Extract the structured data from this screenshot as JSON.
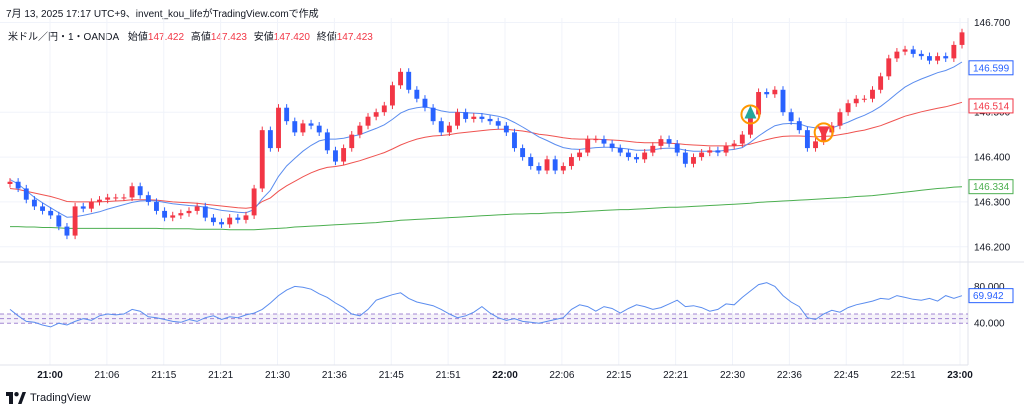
{
  "header": {
    "text": "7月 13, 2025 17:17 UTC+9、invent_kou_lifeがTradingView.comで作成"
  },
  "legend": {
    "symbol": "米ドル／円・1・OANDA",
    "open_label": "始値",
    "open_value": "147.422",
    "high_label": "高値",
    "high_value": "147.423",
    "low_label": "安値",
    "low_value": "147.420",
    "close_label": "終値",
    "close_value": "147.423"
  },
  "footer": {
    "brand": "TradingView"
  },
  "colors": {
    "up": "#f23645",
    "down": "#2962ff",
    "fast_ma": "#5b8def",
    "slow_ma": "#ef5350",
    "long_ma": "#4caf50",
    "rsi": "#5b8def",
    "rsi_band": "#7e57c2"
  },
  "chart_data": [
    {
      "type": "candlestick",
      "title": "",
      "ylim": [
        146.175,
        146.71
      ],
      "y_ticks": [
        "146.700",
        "146.500",
        "146.400",
        "146.300",
        "146.200"
      ],
      "x_ticks": [
        {
          "label": "21:00",
          "bold": true
        },
        {
          "label": "21:06",
          "bold": false
        },
        {
          "label": "21:15",
          "bold": false
        },
        {
          "label": "21:21",
          "bold": false
        },
        {
          "label": "21:30",
          "bold": false
        },
        {
          "label": "21:36",
          "bold": false
        },
        {
          "label": "21:45",
          "bold": false
        },
        {
          "label": "21:51",
          "bold": false
        },
        {
          "label": "22:00",
          "bold": true
        },
        {
          "label": "22:06",
          "bold": false
        },
        {
          "label": "22:15",
          "bold": false
        },
        {
          "label": "22:21",
          "bold": false
        },
        {
          "label": "22:30",
          "bold": false
        },
        {
          "label": "22:36",
          "bold": false
        },
        {
          "label": "22:45",
          "bold": false
        },
        {
          "label": "22:51",
          "bold": false
        },
        {
          "label": "23:00",
          "bold": true
        }
      ],
      "price_labels": [
        {
          "value": "146.599",
          "color": "#2962ff"
        },
        {
          "value": "146.514",
          "color": "#f23645"
        },
        {
          "value": "146.334",
          "color": "#4caf50"
        }
      ],
      "closes": [
        146.345,
        146.33,
        146.305,
        146.29,
        146.28,
        146.27,
        146.245,
        146.225,
        146.29,
        146.285,
        146.3,
        146.305,
        146.31,
        146.31,
        146.31,
        146.335,
        146.315,
        146.3,
        146.28,
        146.265,
        146.27,
        146.275,
        146.28,
        146.29,
        146.265,
        146.255,
        146.25,
        146.265,
        146.26,
        146.27,
        146.33,
        146.46,
        146.42,
        146.51,
        146.48,
        146.455,
        146.475,
        146.47,
        146.455,
        146.415,
        146.39,
        146.42,
        146.45,
        146.47,
        146.49,
        146.5,
        146.515,
        146.56,
        146.59,
        146.55,
        146.53,
        146.51,
        146.48,
        146.455,
        146.47,
        146.5,
        146.485,
        146.49,
        146.485,
        146.48,
        146.47,
        146.455,
        146.42,
        146.4,
        146.38,
        146.37,
        146.395,
        146.37,
        146.38,
        146.4,
        146.41,
        146.44,
        146.44,
        146.43,
        146.42,
        146.41,
        146.4,
        146.395,
        146.41,
        146.425,
        146.44,
        146.43,
        146.41,
        146.385,
        146.4,
        146.41,
        146.415,
        146.41,
        146.425,
        146.43,
        146.45,
        146.495,
        146.545,
        146.54,
        146.55,
        146.5,
        146.48,
        146.46,
        146.42,
        146.435,
        146.455,
        146.47,
        146.5,
        146.52,
        146.53,
        146.53,
        146.55,
        146.58,
        146.62,
        146.635,
        146.64,
        146.63,
        146.625,
        146.615,
        146.625,
        146.62,
        146.65,
        146.678
      ],
      "ma_fast": [
        146.35,
        146.34,
        146.325,
        146.31,
        146.298,
        146.287,
        146.276,
        146.266,
        146.267,
        146.27,
        146.274,
        146.278,
        146.284,
        146.289,
        146.294,
        146.299,
        146.302,
        146.303,
        146.302,
        146.299,
        146.296,
        146.294,
        146.292,
        146.291,
        146.288,
        146.285,
        146.281,
        146.279,
        146.277,
        146.276,
        146.283,
        146.307,
        146.326,
        146.357,
        146.38,
        146.397,
        146.413,
        146.426,
        146.436,
        146.44,
        146.44,
        146.442,
        146.446,
        146.45,
        146.457,
        146.464,
        146.472,
        146.484,
        146.498,
        146.506,
        146.51,
        146.512,
        146.508,
        146.503,
        146.5,
        146.5,
        146.499,
        146.498,
        146.497,
        146.494,
        146.491,
        146.486,
        146.477,
        146.467,
        146.456,
        146.445,
        146.437,
        146.428,
        146.421,
        146.418,
        146.417,
        146.419,
        146.421,
        146.422,
        146.422,
        146.42,
        146.418,
        146.415,
        146.415,
        146.416,
        146.419,
        146.42,
        146.419,
        146.415,
        146.413,
        146.413,
        146.413,
        146.413,
        146.415,
        146.417,
        146.421,
        146.433,
        146.447,
        146.459,
        146.47,
        146.474,
        146.475,
        146.474,
        146.468,
        146.465,
        146.464,
        146.465,
        146.471,
        146.478,
        146.486,
        146.493,
        146.502,
        146.513,
        146.527,
        146.542,
        146.556,
        146.566,
        146.574,
        146.581,
        146.588,
        146.593,
        146.601,
        146.612
      ],
      "ma_slow": [
        146.33,
        146.328,
        146.324,
        146.32,
        146.316,
        146.312,
        146.307,
        146.301,
        146.3,
        146.3,
        146.3,
        146.3,
        146.301,
        146.302,
        146.303,
        146.305,
        146.305,
        146.305,
        146.304,
        146.302,
        146.3,
        146.299,
        146.298,
        146.297,
        146.295,
        146.293,
        146.291,
        146.289,
        146.287,
        146.286,
        146.288,
        146.301,
        146.309,
        146.324,
        146.336,
        146.346,
        146.356,
        146.365,
        146.372,
        146.377,
        146.379,
        146.382,
        146.387,
        146.392,
        146.398,
        146.404,
        146.41,
        146.418,
        146.427,
        146.434,
        146.44,
        146.444,
        146.447,
        146.448,
        146.45,
        146.453,
        146.455,
        146.457,
        146.459,
        146.461,
        146.462,
        146.462,
        146.46,
        146.458,
        146.455,
        146.451,
        146.449,
        146.446,
        146.443,
        146.441,
        146.44,
        146.44,
        146.44,
        146.439,
        146.438,
        146.437,
        146.435,
        146.433,
        146.432,
        146.432,
        146.432,
        146.431,
        146.43,
        146.428,
        146.427,
        146.426,
        146.425,
        146.425,
        146.425,
        146.425,
        146.426,
        146.429,
        146.434,
        146.439,
        146.443,
        146.446,
        146.447,
        146.447,
        146.446,
        146.445,
        146.446,
        146.447,
        146.45,
        146.453,
        146.457,
        146.46,
        146.465,
        146.47,
        146.477,
        146.484,
        146.491,
        146.496,
        146.501,
        146.505,
        146.509,
        146.512,
        146.517,
        146.522
      ],
      "ma_long": [
        146.245,
        146.245,
        146.244,
        146.244,
        146.243,
        146.243,
        146.242,
        146.241,
        146.241,
        146.241,
        146.241,
        146.241,
        146.241,
        146.241,
        146.241,
        146.241,
        146.241,
        146.241,
        146.241,
        146.24,
        146.24,
        146.24,
        146.24,
        146.239,
        146.239,
        146.239,
        146.239,
        146.238,
        146.238,
        146.238,
        146.238,
        146.239,
        146.24,
        146.241,
        146.242,
        146.244,
        146.245,
        146.246,
        146.247,
        146.248,
        146.249,
        146.25,
        146.251,
        146.252,
        146.253,
        146.254,
        146.256,
        146.257,
        146.259,
        146.26,
        146.261,
        146.262,
        146.263,
        146.264,
        146.265,
        146.266,
        146.267,
        146.268,
        146.269,
        146.27,
        146.271,
        146.272,
        146.273,
        146.273,
        146.274,
        146.274,
        146.275,
        146.276,
        146.276,
        146.277,
        146.278,
        146.279,
        146.28,
        146.281,
        146.282,
        146.283,
        146.283,
        146.284,
        146.285,
        146.286,
        146.287,
        146.288,
        146.288,
        146.289,
        146.29,
        146.291,
        146.292,
        146.293,
        146.294,
        146.295,
        146.296,
        146.297,
        146.299,
        146.3,
        146.301,
        146.302,
        146.303,
        146.304,
        146.305,
        146.306,
        146.307,
        146.308,
        146.309,
        146.31,
        146.312,
        146.313,
        146.314,
        146.316,
        146.318,
        146.32,
        146.322,
        146.324,
        146.326,
        146.328,
        146.33,
        146.331,
        146.333,
        146.334
      ],
      "markers": [
        {
          "type": "buy",
          "index": 91
        },
        {
          "type": "sell",
          "index": 100
        }
      ]
    },
    {
      "type": "line",
      "title": "",
      "ylim": [
        0,
        100
      ],
      "y_ticks": [
        "80.000",
        "40.000"
      ],
      "bands": [
        50,
        45,
        40
      ],
      "current_label": "69.942",
      "values": [
        55,
        48,
        42,
        41,
        38,
        36,
        40,
        38,
        42,
        45,
        43,
        48,
        50,
        49,
        50,
        55,
        53,
        47,
        46,
        44,
        42,
        41,
        44,
        42,
        46,
        48,
        44,
        47,
        46,
        49,
        51,
        55,
        62,
        70,
        76,
        80,
        79,
        77,
        72,
        68,
        62,
        57,
        50,
        48,
        55,
        65,
        68,
        71,
        73,
        67,
        63,
        61,
        59,
        55,
        50,
        46,
        48,
        52,
        58,
        51,
        46,
        43,
        45,
        42,
        41,
        40,
        42,
        44,
        46,
        55,
        60,
        58,
        53,
        58,
        56,
        51,
        56,
        60,
        58,
        55,
        57,
        61,
        65,
        58,
        59,
        57,
        53,
        55,
        61,
        60,
        68,
        75,
        82,
        84,
        80,
        70,
        63,
        58,
        46,
        44,
        50,
        54,
        52,
        57,
        60,
        62,
        64,
        67,
        66,
        70,
        68,
        66,
        65,
        67,
        64,
        70,
        67,
        69.942
      ]
    }
  ]
}
